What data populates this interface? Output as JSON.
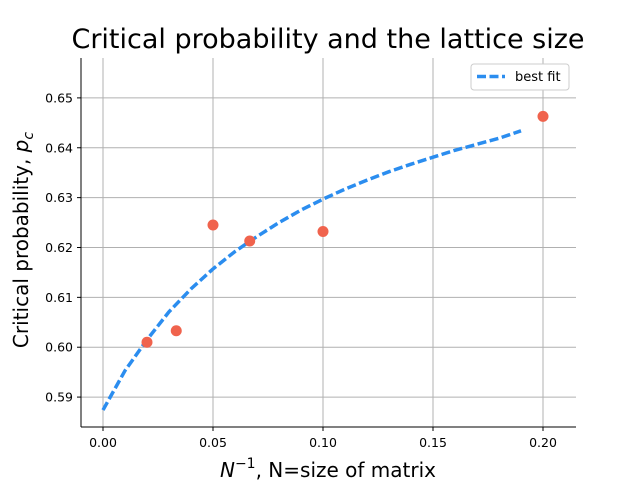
{
  "chart_data": {
    "type": "scatter",
    "title": "Critical probability and the lattice size",
    "xlabel_math": "N",
    "xlabel_sup": "−1",
    "xlabel_rest": ", N=size of matrix",
    "ylabel_text": "Critical probability, ",
    "ylabel_math": "p",
    "ylabel_sub": "c",
    "xlim": [
      -0.01,
      0.215
    ],
    "ylim": [
      0.584,
      0.658
    ],
    "xticks": [
      0.0,
      0.05,
      0.1,
      0.15,
      0.2
    ],
    "xtick_labels": [
      "0.00",
      "0.05",
      "0.10",
      "0.15",
      "0.20"
    ],
    "yticks": [
      0.59,
      0.6,
      0.61,
      0.62,
      0.63,
      0.64,
      0.65
    ],
    "ytick_labels": [
      "0.59",
      "0.60",
      "0.61",
      "0.62",
      "0.63",
      "0.64",
      "0.65"
    ],
    "grid": true,
    "legend_position": "top-right",
    "points": {
      "color": "#f0634d",
      "x": [
        0.02,
        0.0333,
        0.05,
        0.0667,
        0.1,
        0.2
      ],
      "y": [
        0.601,
        0.6033,
        0.6245,
        0.6213,
        0.6232,
        0.6463
      ]
    },
    "fit": {
      "name": "best fit",
      "color": "#2b8def",
      "x": [
        0.0,
        0.01,
        0.02,
        0.03,
        0.04,
        0.05,
        0.06,
        0.07,
        0.08,
        0.09,
        0.1,
        0.11,
        0.12,
        0.13,
        0.14,
        0.15,
        0.16,
        0.17,
        0.18,
        0.19
      ],
      "y": [
        0.5874,
        0.5953,
        0.6015,
        0.6071,
        0.6117,
        0.6157,
        0.6192,
        0.6222,
        0.625,
        0.6275,
        0.6297,
        0.6317,
        0.6335,
        0.6352,
        0.6367,
        0.6381,
        0.6395,
        0.6407,
        0.6419,
        0.6434
      ]
    }
  }
}
